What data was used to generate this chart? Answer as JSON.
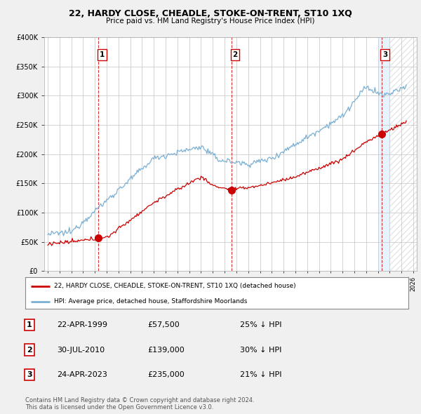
{
  "title": "22, HARDY CLOSE, CHEADLE, STOKE-ON-TRENT, ST10 1XQ",
  "subtitle": "Price paid vs. HM Land Registry's House Price Index (HPI)",
  "legend_line1": "22, HARDY CLOSE, CHEADLE, STOKE-ON-TRENT, ST10 1XQ (detached house)",
  "legend_line2": "HPI: Average price, detached house, Staffordshire Moorlands",
  "footer1": "Contains HM Land Registry data © Crown copyright and database right 2024.",
  "footer2": "This data is licensed under the Open Government Licence v3.0.",
  "transactions": [
    {
      "num": 1,
      "date": "22-APR-1999",
      "price": "£57,500",
      "hpi": "25% ↓ HPI",
      "year": 1999.3
    },
    {
      "num": 2,
      "date": "30-JUL-2010",
      "price": "£139,000",
      "hpi": "30% ↓ HPI",
      "year": 2010.58
    },
    {
      "num": 3,
      "date": "24-APR-2023",
      "price": "£235,000",
      "hpi": "21% ↓ HPI",
      "year": 2023.3
    }
  ],
  "transaction_values": [
    57500,
    139000,
    235000
  ],
  "ylim": [
    0,
    400000
  ],
  "yticks": [
    0,
    50000,
    100000,
    150000,
    200000,
    250000,
    300000,
    350000,
    400000
  ],
  "xlim_start": 1994.7,
  "xlim_end": 2026.3,
  "bg_color": "#f0f0f0",
  "plot_bg": "#ffffff",
  "hpi_color": "#7ab0d4",
  "price_color": "#cc0000",
  "grid_color": "#cccccc",
  "vline_color": "#cc0000",
  "highlight_color": "#ddeeff"
}
